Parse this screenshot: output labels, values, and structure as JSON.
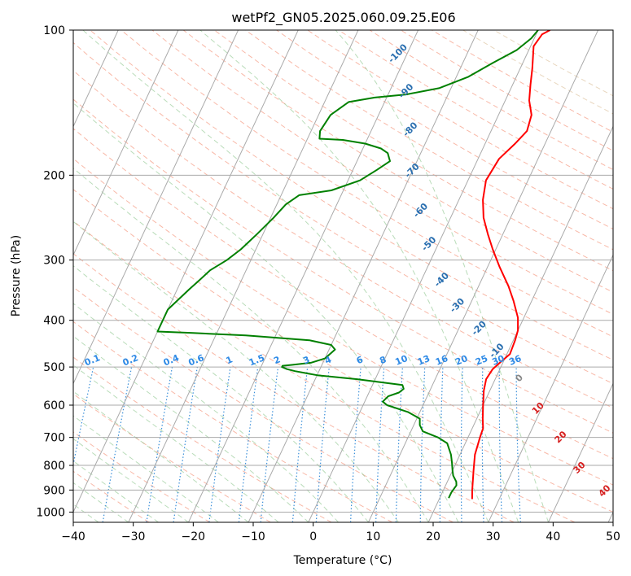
{
  "chart_data": {
    "type": "line",
    "title": "wetPf2_GN05.2025.060.09.25.E06",
    "xlabel": "Temperature (°C)",
    "ylabel": "Pressure (hPa)",
    "xlim": [
      -40,
      50
    ],
    "ylim": [
      1050,
      100
    ],
    "y_scale": "log",
    "x_ticks": [
      -40,
      -30,
      -20,
      -10,
      0,
      10,
      20,
      30,
      40,
      50
    ],
    "y_ticks": [
      100,
      200,
      300,
      400,
      500,
      600,
      700,
      800,
      900,
      1000
    ],
    "grid": true,
    "series": [
      {
        "color": "#ff0000",
        "points": [
          [
            25.5,
            940
          ],
          [
            24.8,
            900
          ],
          [
            24.0,
            850
          ],
          [
            23.5,
            820
          ],
          [
            22.5,
            760
          ],
          [
            22.0,
            700
          ],
          [
            21.8,
            670
          ],
          [
            21.0,
            640
          ],
          [
            20.0,
            600
          ],
          [
            19.0,
            560
          ],
          [
            18.5,
            530
          ],
          [
            18.8,
            505
          ],
          [
            19.5,
            490
          ],
          [
            20.5,
            470
          ],
          [
            20.3,
            440
          ],
          [
            20.0,
            420
          ],
          [
            19.0,
            395
          ],
          [
            17.0,
            365
          ],
          [
            15.0,
            340
          ],
          [
            12.0,
            310
          ],
          [
            9.5,
            285
          ],
          [
            7.5,
            265
          ],
          [
            5.5,
            245
          ],
          [
            4.0,
            225
          ],
          [
            3.0,
            205
          ],
          [
            3.5,
            185
          ],
          [
            5.0,
            172
          ],
          [
            6.0,
            162
          ],
          [
            5.5,
            150
          ],
          [
            4.0,
            140
          ],
          [
            3.0,
            130
          ],
          [
            2.0,
            120
          ],
          [
            0.5,
            108
          ],
          [
            1.0,
            102
          ],
          [
            2.0,
            100
          ]
        ]
      },
      {
        "color": "#008000",
        "points": [
          [
            21.5,
            935
          ],
          [
            21.5,
            910
          ],
          [
            21.8,
            880
          ],
          [
            21.5,
            865
          ],
          [
            20.5,
            840
          ],
          [
            20.0,
            820
          ],
          [
            19.3,
            790
          ],
          [
            18.5,
            760
          ],
          [
            17.0,
            720
          ],
          [
            15.0,
            700
          ],
          [
            12.0,
            680
          ],
          [
            11.0,
            660
          ],
          [
            10.5,
            640
          ],
          [
            8.0,
            620
          ],
          [
            4.0,
            600
          ],
          [
            3.0,
            590
          ],
          [
            3.5,
            575
          ],
          [
            5.0,
            565
          ],
          [
            5.5,
            555
          ],
          [
            5.0,
            545
          ],
          [
            -3.0,
            530
          ],
          [
            -10.0,
            520
          ],
          [
            -14.0,
            510
          ],
          [
            -15.5,
            505
          ],
          [
            -16.5,
            500
          ],
          [
            -16.5,
            497
          ],
          [
            -15.0,
            495
          ],
          [
            -12.0,
            490
          ],
          [
            -10.0,
            480
          ],
          [
            -9.0,
            460
          ],
          [
            -10.0,
            450
          ],
          [
            -14.0,
            440
          ],
          [
            -25.0,
            430
          ],
          [
            -34.0,
            425
          ],
          [
            -40.0,
            422
          ],
          [
            -40.0,
            380
          ],
          [
            -38.0,
            345
          ],
          [
            -37.0,
            330
          ],
          [
            -36.0,
            315
          ],
          [
            -34.0,
            300
          ],
          [
            -32.5,
            285
          ],
          [
            -31.0,
            265
          ],
          [
            -29.5,
            245
          ],
          [
            -28.5,
            230
          ],
          [
            -27.0,
            220
          ],
          [
            -22.0,
            215
          ],
          [
            -18.0,
            205
          ],
          [
            -16.0,
            195
          ],
          [
            -14.5,
            187
          ],
          [
            -15.5,
            180
          ],
          [
            -17.0,
            176
          ],
          [
            -20.0,
            172
          ],
          [
            -24.0,
            169
          ],
          [
            -28.0,
            168
          ],
          [
            -28.5,
            162
          ],
          [
            -28.0,
            150
          ],
          [
            -26.0,
            141
          ],
          [
            -22.0,
            138
          ],
          [
            -17.0,
            136
          ],
          [
            -12.0,
            132
          ],
          [
            -8.0,
            125
          ],
          [
            -5.0,
            117
          ],
          [
            -2.0,
            110
          ],
          [
            -0.5,
            104
          ],
          [
            0.0,
            100
          ]
        ]
      }
    ],
    "isotherm_labels": [
      {
        "text": "-100",
        "x": -21.5,
        "p": 112
      },
      {
        "text": "-90",
        "x": -17.2,
        "p": 134
      },
      {
        "text": "-80",
        "x": -13.5,
        "p": 161
      },
      {
        "text": "-70",
        "x": -10.0,
        "p": 196
      },
      {
        "text": "-60",
        "x": -5.5,
        "p": 237
      },
      {
        "text": "-50",
        "x": -1.5,
        "p": 278
      },
      {
        "text": "-40",
        "x": 3.4,
        "p": 330
      },
      {
        "text": "-30",
        "x": 8.0,
        "p": 373
      },
      {
        "text": "-20",
        "x": 13.4,
        "p": 416
      },
      {
        "text": "-10",
        "x": 18.1,
        "p": 463
      },
      {
        "text": "0",
        "x": 24.0,
        "p": 528
      },
      {
        "text": "10",
        "x": 29.5,
        "p": 610
      },
      {
        "text": "20",
        "x": 35.5,
        "p": 700
      },
      {
        "text": "30",
        "x": 41.0,
        "p": 810
      },
      {
        "text": "40",
        "x": 47.0,
        "p": 905
      }
    ],
    "mixing_ratio_labels": [
      "0.1",
      "0.2",
      "0.4",
      "0.6",
      "1",
      "1.5",
      "2",
      "3",
      "4",
      "6",
      "8",
      "10",
      "13",
      "16",
      "20",
      "25",
      "30",
      "36"
    ]
  }
}
